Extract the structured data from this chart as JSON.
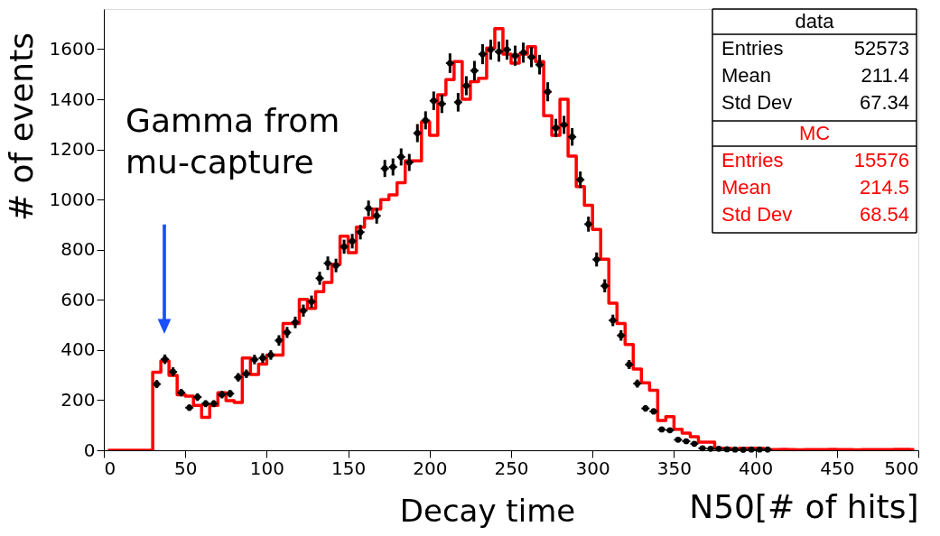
{
  "chart_data": {
    "type": "scatter",
    "xlabel": "N50[# of hits]",
    "ylabel": "# of events",
    "x": [
      2.5,
      7.5,
      12.5,
      17.5,
      22.5,
      27.5,
      32.5,
      37.5,
      42.5,
      47.5,
      52.5,
      57.5,
      62.5,
      67.5,
      72.5,
      77.5,
      82.5,
      87.5,
      92.5,
      97.5,
      102.5,
      107.5,
      112.5,
      117.5,
      122.5,
      127.5,
      132.5,
      137.5,
      142.5,
      147.5,
      152.5,
      157.5,
      162.5,
      167.5,
      172.5,
      177.5,
      182.5,
      187.5,
      192.5,
      197.5,
      202.5,
      207.5,
      212.5,
      217.5,
      222.5,
      227.5,
      232.5,
      237.5,
      242.5,
      247.5,
      252.5,
      257.5,
      262.5,
      267.5,
      272.5,
      277.5,
      282.5,
      287.5,
      292.5,
      297.5,
      302.5,
      307.5,
      312.5,
      317.5,
      322.5,
      327.5,
      332.5,
      337.5,
      342.5,
      347.5,
      352.5,
      357.5,
      362.5,
      367.5,
      372.5,
      377.5,
      382.5,
      387.5,
      392.5,
      397.5,
      402.5,
      407.5,
      412.5,
      417.5,
      422.5,
      427.5,
      432.5,
      437.5,
      442.5,
      447.5,
      452.5,
      457.5,
      462.5,
      467.5,
      472.5,
      477.5,
      482.5,
      487.5,
      492.5,
      497.5
    ],
    "series": [
      {
        "name": "MC",
        "type": "step",
        "color": "#ff0000",
        "values": [
          0,
          0,
          0,
          0,
          0,
          0,
          311,
          356,
          299,
          221,
          216,
          179,
          131,
          179,
          229,
          198,
          191,
          368,
          302,
          344,
          380,
          380,
          506,
          506,
          602,
          566,
          633,
          669,
          741,
          854,
          788,
          890,
          926,
          962,
          1000,
          1019,
          1067,
          1154,
          1154,
          1310,
          1256,
          1418,
          1478,
          1550,
          1400,
          1470,
          1484,
          1604,
          1682,
          1580,
          1544,
          1580,
          1610,
          1550,
          1334,
          1256,
          1400,
          1173,
          1052,
          977,
          881,
          762,
          587,
          506,
          422,
          324,
          269,
          239,
          119,
          134,
          84,
          68,
          54,
          32,
          32,
          8,
          8,
          4,
          8,
          8,
          8,
          3,
          3,
          4,
          3,
          2,
          3,
          3,
          3,
          4,
          3,
          3,
          2,
          3,
          3,
          3,
          3,
          4,
          4,
          3
        ]
      },
      {
        "name": "data",
        "color": "#000000",
        "marker": "circle",
        "values": [
          null,
          null,
          null,
          null,
          null,
          null,
          264,
          363,
          313,
          230,
          170,
          212,
          186,
          186,
          222,
          226,
          291,
          305,
          362,
          368,
          380,
          438,
          470,
          510,
          557,
          593,
          686,
          746,
          737,
          812,
          834,
          870,
          965,
          935,
          1124,
          1130,
          1170,
          1148,
          1265,
          1316,
          1394,
          1382,
          1544,
          1388,
          1454,
          1514,
          1580,
          1598,
          1590,
          1598,
          1574,
          1586,
          1568,
          1538,
          1430,
          1286,
          1298,
          1250,
          1079,
          902,
          761,
          656,
          518,
          458,
          342,
          266,
          167,
          155,
          83,
          80,
          42,
          36,
          26,
          8,
          6,
          6,
          4,
          3,
          2,
          3,
          3,
          3,
          null,
          null,
          null,
          null,
          null,
          null,
          null,
          null,
          null,
          null,
          null,
          null,
          null,
          null,
          null,
          null,
          null,
          null
        ],
        "errors": [
          null,
          null,
          null,
          null,
          null,
          null,
          16,
          19,
          18,
          15,
          13,
          15,
          14,
          14,
          15,
          15,
          17,
          17,
          19,
          19,
          19,
          21,
          22,
          23,
          24,
          24,
          26,
          27,
          27,
          28,
          29,
          29,
          31,
          31,
          34,
          34,
          34,
          34,
          36,
          36,
          37,
          37,
          39,
          37,
          38,
          39,
          40,
          40,
          40,
          40,
          40,
          40,
          40,
          39,
          38,
          36,
          36,
          35,
          33,
          30,
          28,
          26,
          23,
          21,
          18,
          16,
          13,
          12,
          9,
          9,
          6,
          6,
          5,
          3,
          2,
          2,
          2,
          2,
          1,
          2,
          2,
          2,
          null,
          null,
          null,
          null,
          null,
          null,
          null,
          null,
          null,
          null,
          null,
          null,
          null,
          null,
          null,
          null,
          null,
          null
        ],
        "xerrors": [
          null,
          null,
          null,
          null,
          null,
          null,
          2.5,
          2.5,
          2.5,
          2.5,
          2.5,
          2.5,
          2.5,
          2.5,
          2.5,
          2.5,
          2.5,
          2.5,
          2.5,
          2.5,
          2.5,
          2.5,
          2.5,
          2.5,
          2.5,
          2.5,
          2.5,
          2.5,
          2.5,
          2.5,
          2.5,
          2.5,
          2.5,
          2.5,
          2.5,
          2.5,
          2.5,
          2.5,
          2.5,
          2.5,
          2.5,
          2.5,
          2.5,
          2.5,
          2.5,
          2.5,
          2.5,
          2.5,
          2.5,
          2.5,
          2.5,
          2.5,
          2.5,
          2.5,
          2.5,
          2.5,
          2.5,
          2.5,
          2.5,
          2.5,
          2.5,
          2.5,
          2.5,
          2.5,
          2.5,
          2.5,
          2.5,
          2.5,
          2.5,
          2.5,
          2.5,
          2.5,
          2.5,
          2.5,
          2.5,
          2.5,
          2.5,
          2.5,
          2.5,
          2.5,
          2.5,
          2.5,
          null,
          null,
          null,
          null,
          null,
          null,
          null,
          null,
          null,
          null,
          null,
          null,
          null,
          null,
          null,
          null,
          null,
          null
        ]
      }
    ],
    "xlim": [
      0,
      500
    ],
    "xticks": [
      0,
      50,
      100,
      150,
      200,
      250,
      300,
      350,
      400,
      450,
      500
    ],
    "ylim": [
      0,
      1760
    ],
    "yticks": [
      0,
      200,
      400,
      600,
      800,
      1000,
      1200,
      1400,
      1600
    ],
    "grid": false,
    "annotations": [
      "Gamma from\nmu-capture",
      "Decay time",
      "Entries 52573",
      "Mean 211.4",
      "Std Dev 67.34",
      "Entries 15576",
      "Mean 214.5",
      "Std Dev 68.54"
    ]
  }
}
